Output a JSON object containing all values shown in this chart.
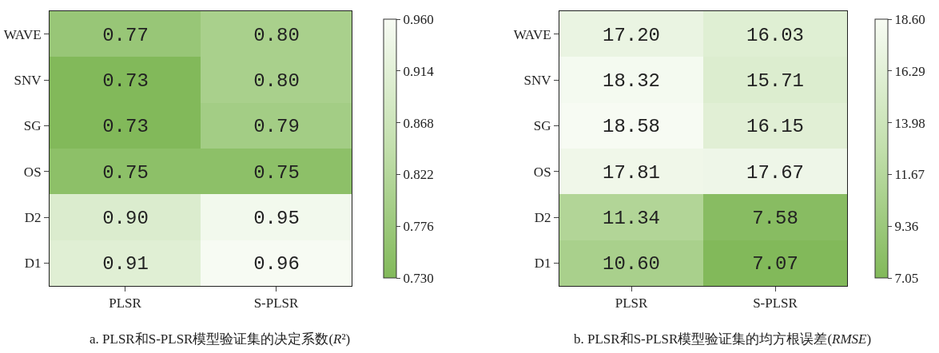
{
  "chart_data": [
    {
      "type": "heatmap",
      "title": "a. PLSR和S-PLSR模型验证集的决定系数(R²)",
      "categories": [
        "PLSR",
        "S-PLSR"
      ],
      "y_categories": [
        "WAVE",
        "SNV",
        "SG",
        "OS",
        "D2",
        "D1"
      ],
      "cells": [
        [
          0.77,
          0.8
        ],
        [
          0.73,
          0.8
        ],
        [
          0.73,
          0.79
        ],
        [
          0.75,
          0.75
        ],
        [
          0.9,
          0.95
        ],
        [
          0.91,
          0.96
        ]
      ],
      "cell_labels": [
        [
          "0.77",
          "0.80"
        ],
        [
          "0.73",
          "0.80"
        ],
        [
          "0.73",
          "0.79"
        ],
        [
          "0.75",
          "0.75"
        ],
        [
          "0.90",
          "0.95"
        ],
        [
          "0.91",
          "0.96"
        ]
      ],
      "clim": [
        0.73,
        0.96
      ],
      "cticks": [
        {
          "value": 0.73,
          "label": "0.730"
        },
        {
          "value": 0.776,
          "label": "0.776"
        },
        {
          "value": 0.822,
          "label": "0.822"
        },
        {
          "value": 0.868,
          "label": "0.868"
        },
        {
          "value": 0.914,
          "label": "0.914"
        },
        {
          "value": 0.96,
          "label": "0.960"
        }
      ]
    },
    {
      "type": "heatmap",
      "title": "b. PLSR和S-PLSR模型验证集的均方根误差(RMSE)",
      "categories": [
        "PLSR",
        "S-PLSR"
      ],
      "y_categories": [
        "WAVE",
        "SNV",
        "SG",
        "OS",
        "D2",
        "D1"
      ],
      "cells": [
        [
          17.2,
          16.03
        ],
        [
          18.32,
          15.71
        ],
        [
          18.58,
          16.15
        ],
        [
          17.81,
          17.67
        ],
        [
          11.34,
          7.58
        ],
        [
          10.6,
          7.07
        ]
      ],
      "cell_labels": [
        [
          "17.20",
          "16.03"
        ],
        [
          "18.32",
          "15.71"
        ],
        [
          "18.58",
          "16.15"
        ],
        [
          "17.81",
          "17.67"
        ],
        [
          "11.34",
          "7.58"
        ],
        [
          "10.60",
          "7.07"
        ]
      ],
      "clim": [
        7.05,
        18.6
      ],
      "cticks": [
        7.05,
        9.36,
        11.67,
        13.98,
        16.29,
        {
          "value": 18.6,
          "label": "18.60"
        }
      ]
    }
  ]
}
